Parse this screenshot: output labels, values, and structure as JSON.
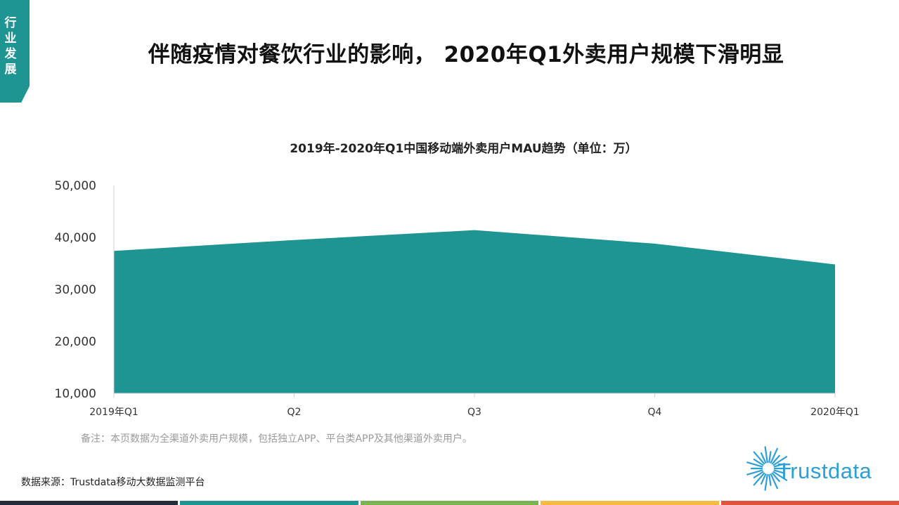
{
  "side_tag": "行业发展",
  "page_title": "伴随疫情对餐饮行业的影响， 2020年Q1外卖用户规模下滑明显",
  "chart_data": {
    "type": "area",
    "title": "2019年-2020年Q1中国移动端外卖用户MAU趋势（单位：万）",
    "categories": [
      "2019年Q1",
      "Q2",
      "Q3",
      "Q4",
      "2020年Q1"
    ],
    "values": [
      37400,
      39500,
      41400,
      38800,
      34800
    ],
    "ylim": [
      10000,
      50000
    ],
    "yticks": [
      "50,000",
      "40,000",
      "30,000",
      "20,000",
      "10,000"
    ],
    "ytick_values": [
      50000,
      40000,
      30000,
      20000,
      10000
    ],
    "fill_color": "#1e9593",
    "grid": false
  },
  "note": "备注：本页数据为全渠道外卖用户规模，包括独立APP、平台类APP及其他渠道外卖用户。",
  "source": "数据来源：Trustdata移动大数据监测平台",
  "logo_text": "Trustdata",
  "colors": {
    "accent": "#1e9593",
    "logo_blue": "#2c9fd7",
    "footer": [
      "#252d3a",
      "#1e9593",
      "#78b450",
      "#f5bb41",
      "#e0533d"
    ]
  }
}
